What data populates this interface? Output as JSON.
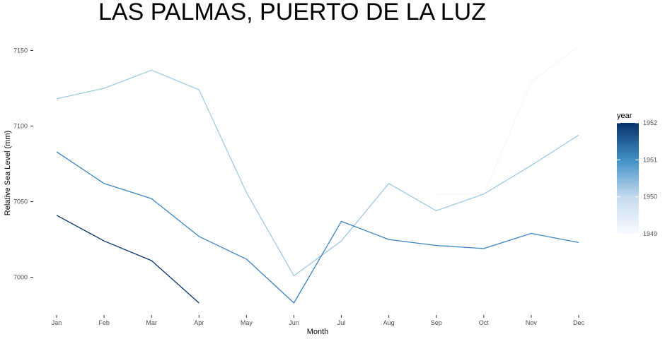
{
  "chart_data": {
    "type": "line",
    "title": "LAS PALMAS, PUERTO DE LA LUZ",
    "xlabel": "Month",
    "ylabel": "Relative Sea Level (mm)",
    "categories": [
      "Jan",
      "Feb",
      "Mar",
      "Apr",
      "May",
      "Jun",
      "Jul",
      "Aug",
      "Sep",
      "Oct",
      "Nov",
      "Dec"
    ],
    "ylim": [
      6983,
      7153
    ],
    "yticks": [
      7000,
      7050,
      7100,
      7150
    ],
    "grid": false,
    "legend": {
      "title": "year",
      "placement": "right",
      "type": "colorbar",
      "range": [
        1949,
        1952
      ],
      "ticks": [
        "1949",
        "1950",
        "1951",
        "1952"
      ],
      "color_low": "#f7fbff",
      "color_high": "#08306b"
    },
    "series": [
      {
        "year_value": 1949,
        "color": "#f4f8fd",
        "values": [
          null,
          null,
          null,
          null,
          null,
          null,
          null,
          null,
          7055,
          7055,
          7129,
          7153
        ]
      },
      {
        "year_value": 1950,
        "color": "#9ecae1",
        "values": [
          7118,
          7125,
          7137,
          7124,
          7056,
          7001,
          7024,
          7062,
          7044,
          7055,
          7074,
          7094
        ]
      },
      {
        "year_value": 1951,
        "color": "#3a83c1",
        "values": [
          7083,
          7062,
          7052,
          7027,
          7012,
          6983,
          7037,
          7025,
          7021,
          7019,
          7029,
          7023
        ]
      },
      {
        "year_value": 1952,
        "color": "#08306b",
        "values": [
          7041,
          7024,
          7011,
          6983,
          null,
          null,
          null,
          null,
          null,
          null,
          null,
          null
        ]
      }
    ]
  }
}
